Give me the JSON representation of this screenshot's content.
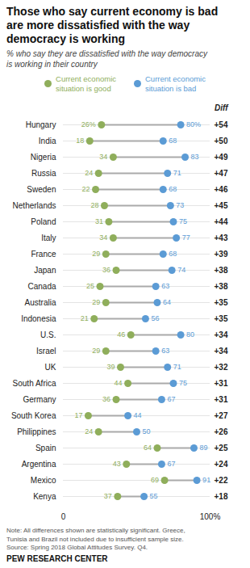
{
  "chart_data": {
    "type": "dumbbell",
    "orientation": "horizontal",
    "title": "Those who say current economy is bad\nare more dissatisfied with the way\ndemocracy is working",
    "subtitle": "% who say they are dissatisfied with the way democracy\nis working in their country",
    "categories": [
      "Hungary",
      "India",
      "Nigeria",
      "Russia",
      "Sweden",
      "Netherlands",
      "Poland",
      "Italy",
      "France",
      "Japan",
      "Canada",
      "Australia",
      "Indonesia",
      "U.S.",
      "Israel",
      "UK",
      "South Africa",
      "Germany",
      "South Korea",
      "Philippines",
      "Spain",
      "Argentina",
      "Mexico",
      "Kenya"
    ],
    "series": [
      {
        "name": "Current economic\nsituation is good",
        "color": "#8fae5b",
        "values": [
          26,
          18,
          34,
          24,
          22,
          28,
          31,
          34,
          29,
          36,
          25,
          29,
          21,
          46,
          29,
          39,
          44,
          36,
          17,
          24,
          64,
          43,
          69,
          37
        ],
        "value_labels": [
          "26%",
          "18",
          "34",
          "24",
          "22",
          "28",
          "31",
          "34",
          "29",
          "36",
          "25",
          "29",
          "21",
          "46",
          "29",
          "39",
          "44",
          "36",
          "17",
          "24",
          "64",
          "43",
          "69",
          "37"
        ]
      },
      {
        "name": "Current economic\nsituation is bad",
        "color": "#5b9bd5",
        "values": [
          80,
          68,
          83,
          71,
          68,
          73,
          75,
          77,
          68,
          74,
          63,
          64,
          56,
          80,
          63,
          71,
          75,
          67,
          44,
          50,
          89,
          67,
          91,
          55
        ],
        "value_labels": [
          "80%",
          "68",
          "83",
          "71",
          "68",
          "73",
          "75",
          "77",
          "68",
          "74",
          "63",
          "64",
          "56",
          "80",
          "63",
          "71",
          "75",
          "67",
          "44",
          "50",
          "89",
          "67",
          "91",
          "55"
        ]
      }
    ],
    "diff": {
      "name": "Diff",
      "values": [
        54,
        50,
        49,
        47,
        46,
        45,
        44,
        43,
        39,
        38,
        38,
        35,
        35,
        34,
        34,
        32,
        31,
        31,
        27,
        26,
        25,
        24,
        22,
        18
      ],
      "value_labels": [
        "+54",
        "+50",
        "+49",
        "+47",
        "+46",
        "+45",
        "+44",
        "+43",
        "+39",
        "+38",
        "+38",
        "+35",
        "+35",
        "+34",
        "+34",
        "+32",
        "+31",
        "+31",
        "+27",
        "+26",
        "+25",
        "+24",
        "+22",
        "+18"
      ]
    },
    "xlim": [
      0,
      100
    ],
    "xticks": [
      0,
      {
        "value": 100,
        "label": "100%"
      }
    ],
    "data_labels": true,
    "grid": false,
    "legend": "top",
    "note": "Note: All differences shown are statistically significant. Greece,\nTunisia and Brazil not included due to insufficient sample size.\nSource: Spring 2018 Global Attitudes Survey. Q4.",
    "source": "PEW RESEARCH CENTER"
  }
}
